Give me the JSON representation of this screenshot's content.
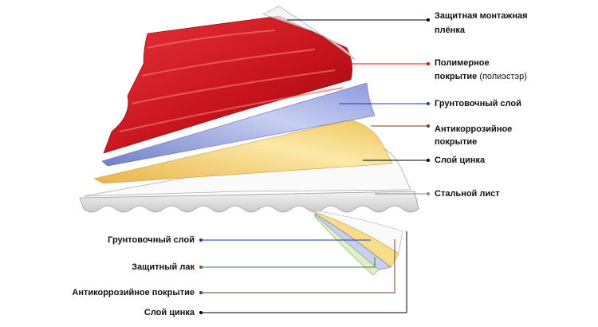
{
  "right_labels": [
    {
      "lines": [
        "Защитная монтажная",
        "плёнка"
      ]
    },
    {
      "lines": [
        "Полимерное",
        "покрытие"
      ],
      "note": "(полиэстэр)"
    },
    {
      "lines": [
        "Грунтовочный слой"
      ]
    },
    {
      "lines": [
        "Антикоррозийное",
        "покрытие"
      ]
    },
    {
      "lines": [
        "Слой цинка"
      ]
    },
    {
      "lines": [
        "Стальной лист"
      ]
    }
  ],
  "left_labels": [
    "Грунтовочный слой",
    "Защитный лак",
    "Антикоррозийное покрытие",
    "Слой цинка"
  ]
}
